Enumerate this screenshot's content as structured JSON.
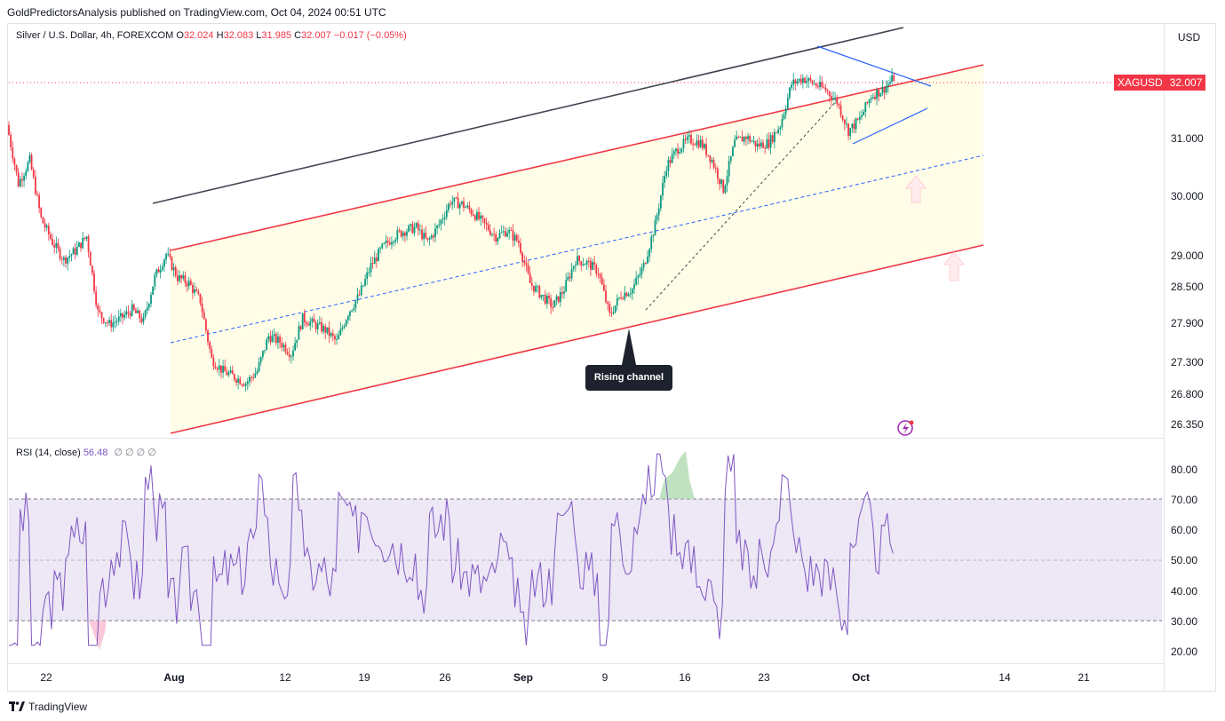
{
  "header": {
    "publish_line": "GoldPredictorsAnalysis published on TradingView.com, Oct 04, 2024 00:51 UTC"
  },
  "legend": {
    "symbol": "Silver / U.S. Dollar, 4h, FOREXCOM",
    "open_label": "O",
    "open": "32.024",
    "high_label": "H",
    "high": "32.083",
    "low_label": "L",
    "low": "31.985",
    "close_label": "C",
    "close": "32.007",
    "change": "−0.017 (−0.05%)"
  },
  "rsi_legend": {
    "name": "RSI (14, close)",
    "value": "56.48",
    "blanks": "∅ ∅ ∅ ∅"
  },
  "price_scale": {
    "currency": "USD",
    "ticks": [
      "31.000",
      "30.000",
      "29.000",
      "28.500",
      "27.900",
      "27.300",
      "26.800",
      "26.350"
    ],
    "last_symbol": "XAGUSD",
    "last_price": "32.007"
  },
  "rsi_scale": {
    "ticks": [
      "80.00",
      "70.00",
      "60.00",
      "50.00",
      "40.00",
      "30.00",
      "20.00"
    ]
  },
  "time_axis": {
    "labels": [
      "22",
      "Aug",
      "12",
      "19",
      "26",
      "Sep",
      "9",
      "16",
      "23",
      "Oct",
      "14",
      "21"
    ]
  },
  "annotation": {
    "label": "Rising channel"
  },
  "brand": {
    "name": "TradingView"
  },
  "colors": {
    "up": "#089981",
    "down": "#f23645",
    "channel": "#f23645",
    "upper_line": "#434651",
    "mid_line": "#2962ff",
    "rsi_line": "#7e57c2",
    "channel_fill": "#fffde7",
    "rsi_band": "#ede7f6"
  },
  "chart_data": {
    "type": "candlestick",
    "title": "Silver / U.S. Dollar, 4h, FOREXCOM",
    "ylim": [
      26.1,
      33.0
    ],
    "x": [
      "2024-07-18",
      "2024-10-30"
    ],
    "channel_upper": [
      [
        "2024-07-31",
        29.05
      ],
      [
        "2024-10-08",
        32.2
      ]
    ],
    "channel_lower": [
      [
        "2024-07-31",
        26.2
      ],
      [
        "2024-10-08",
        29.4
      ]
    ],
    "channel_mid": [
      [
        "2024-07-31",
        27.65
      ],
      [
        "2024-10-08",
        30.8
      ]
    ],
    "resistance_line": [
      [
        "2024-07-30",
        29.95
      ],
      [
        "2024-10-05",
        32.9
      ]
    ],
    "close_path": [
      [
        "2024-07-18",
        31.2
      ],
      [
        "2024-07-19",
        30.2
      ],
      [
        "2024-07-20",
        30.6
      ],
      [
        "2024-07-21",
        29.6
      ],
      [
        "2024-07-22",
        29.2
      ],
      [
        "2024-07-23",
        28.9
      ],
      [
        "2024-07-24",
        29.05
      ],
      [
        "2024-07-25",
        29.3
      ],
      [
        "2024-07-26",
        28.0
      ],
      [
        "2024-07-27",
        27.8
      ],
      [
        "2024-07-28",
        27.9
      ],
      [
        "2024-07-29",
        28.05
      ],
      [
        "2024-07-30",
        27.85
      ],
      [
        "2024-07-31",
        28.6
      ],
      [
        "2024-08-01",
        29.0
      ],
      [
        "2024-08-02",
        28.6
      ],
      [
        "2024-08-03",
        28.5
      ],
      [
        "2024-08-04",
        28.2
      ],
      [
        "2024-08-05",
        27.2
      ],
      [
        "2024-08-06",
        27.0
      ],
      [
        "2024-08-07",
        26.9
      ],
      [
        "2024-08-08",
        26.8
      ],
      [
        "2024-08-09",
        27.0
      ],
      [
        "2024-08-10",
        27.6
      ],
      [
        "2024-08-11",
        27.5
      ],
      [
        "2024-08-12",
        27.3
      ],
      [
        "2024-08-13",
        27.9
      ],
      [
        "2024-08-14",
        27.8
      ],
      [
        "2024-08-15",
        27.7
      ],
      [
        "2024-08-16",
        27.5
      ],
      [
        "2024-08-17",
        28.0
      ],
      [
        "2024-08-18",
        28.3
      ],
      [
        "2024-08-19",
        28.8
      ],
      [
        "2024-08-20",
        29.1
      ],
      [
        "2024-08-21",
        29.3
      ],
      [
        "2024-08-22",
        29.4
      ],
      [
        "2024-08-23",
        29.45
      ],
      [
        "2024-08-24",
        29.2
      ],
      [
        "2024-08-25",
        29.5
      ],
      [
        "2024-08-26",
        29.9
      ],
      [
        "2024-08-27",
        29.85
      ],
      [
        "2024-08-28",
        29.7
      ],
      [
        "2024-08-29",
        29.5
      ],
      [
        "2024-08-30",
        29.3
      ],
      [
        "2024-08-31",
        29.4
      ],
      [
        "2024-09-01",
        29.2
      ],
      [
        "2024-09-02",
        28.5
      ],
      [
        "2024-09-03",
        28.3
      ],
      [
        "2024-09-04",
        28.1
      ],
      [
        "2024-09-05",
        28.4
      ],
      [
        "2024-09-06",
        28.9
      ],
      [
        "2024-09-07",
        28.85
      ],
      [
        "2024-09-08",
        28.7
      ],
      [
        "2024-09-09",
        27.95
      ],
      [
        "2024-09-10",
        28.3
      ],
      [
        "2024-09-11",
        28.4
      ],
      [
        "2024-09-12",
        28.8
      ],
      [
        "2024-09-13",
        29.5
      ],
      [
        "2024-09-14",
        30.5
      ],
      [
        "2024-09-15",
        30.8
      ],
      [
        "2024-09-16",
        30.95
      ],
      [
        "2024-09-17",
        30.9
      ],
      [
        "2024-09-18",
        30.6
      ],
      [
        "2024-09-19",
        30.1
      ],
      [
        "2024-09-20",
        30.9
      ],
      [
        "2024-09-21",
        31.0
      ],
      [
        "2024-09-22",
        30.85
      ],
      [
        "2024-09-23",
        30.9
      ],
      [
        "2024-09-24",
        31.2
      ],
      [
        "2024-09-25",
        31.9
      ],
      [
        "2024-09-26",
        32.0
      ],
      [
        "2024-09-27",
        31.9
      ],
      [
        "2024-09-28",
        31.8
      ],
      [
        "2024-09-29",
        31.6
      ],
      [
        "2024-09-30",
        31.1
      ],
      [
        "2024-10-01",
        31.3
      ],
      [
        "2024-10-02",
        31.7
      ],
      [
        "2024-10-03",
        31.8
      ],
      [
        "2024-10-04",
        32.007
      ]
    ],
    "last_price": 32.007
  }
}
